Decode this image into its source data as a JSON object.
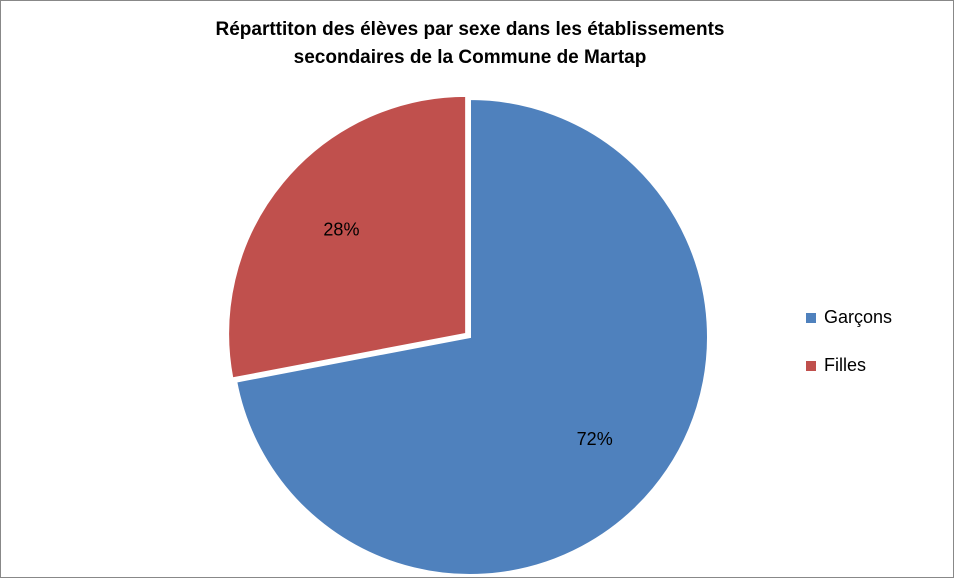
{
  "chart_data": {
    "type": "pie",
    "title": "Réparttiton des élèves par sexe dans les établissements secondaires de la Commune de Martap",
    "categories": [
      "Garçons",
      "Filles"
    ],
    "values": [
      72,
      28
    ],
    "value_labels": [
      "72%",
      "28%"
    ],
    "colors": [
      "#4f81bd",
      "#c0504d"
    ],
    "legend": "right"
  }
}
